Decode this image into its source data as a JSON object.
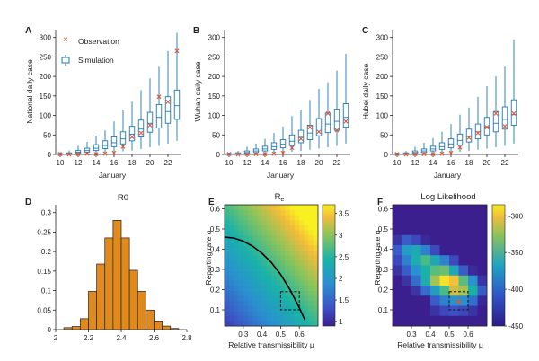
{
  "colors": {
    "box": "#1f78b4",
    "observation": "#e8552b",
    "histogram": "#e08a1e",
    "contour": "#000000"
  },
  "chart_data": [
    {
      "panel": "A",
      "type": "box",
      "ylabel": "National daily case",
      "xlabel": "January",
      "x": [
        10,
        11,
        12,
        13,
        14,
        15,
        16,
        17,
        18,
        19,
        20,
        21,
        22,
        23
      ],
      "xticks": [
        10,
        12,
        14,
        16,
        18,
        20,
        22
      ],
      "yticks": [
        0,
        50,
        100,
        150,
        200,
        250,
        300
      ],
      "ylim": [
        0,
        320
      ],
      "legend": {
        "observation": "Observation",
        "simulation": "Simulation"
      },
      "observation": [
        1,
        0,
        1,
        2,
        1,
        2,
        4,
        20,
        45,
        55,
        75,
        148,
        135,
        265
      ],
      "simulation": [
        {
          "min": 0,
          "q1": 0,
          "median": 1,
          "q3": 2,
          "max": 6
        },
        {
          "min": 0,
          "q1": 1,
          "median": 2,
          "q3": 4,
          "max": 10
        },
        {
          "min": 0,
          "q1": 3,
          "median": 6,
          "q3": 10,
          "max": 22
        },
        {
          "min": 1,
          "q1": 6,
          "median": 10,
          "q3": 16,
          "max": 32
        },
        {
          "min": 2,
          "q1": 10,
          "median": 16,
          "q3": 25,
          "max": 48
        },
        {
          "min": 4,
          "q1": 15,
          "median": 23,
          "q3": 35,
          "max": 62
        },
        {
          "min": 6,
          "q1": 20,
          "median": 30,
          "q3": 45,
          "max": 85
        },
        {
          "min": 8,
          "q1": 27,
          "median": 40,
          "q3": 58,
          "max": 115
        },
        {
          "min": 10,
          "q1": 35,
          "median": 52,
          "q3": 72,
          "max": 135
        },
        {
          "min": 14,
          "q1": 45,
          "median": 65,
          "q3": 88,
          "max": 165
        },
        {
          "min": 18,
          "q1": 57,
          "median": 80,
          "q3": 108,
          "max": 195
        },
        {
          "min": 22,
          "q1": 68,
          "median": 95,
          "q3": 128,
          "max": 225
        },
        {
          "min": 28,
          "q1": 80,
          "median": 110,
          "q3": 148,
          "max": 265
        },
        {
          "min": 35,
          "q1": 90,
          "median": 125,
          "q3": 165,
          "max": 312
        }
      ]
    },
    {
      "panel": "B",
      "type": "box",
      "ylabel": "Wuhan daily case",
      "xlabel": "January",
      "x": [
        10,
        11,
        12,
        13,
        14,
        15,
        16,
        17,
        18,
        19,
        20,
        21,
        22,
        23
      ],
      "xticks": [
        10,
        12,
        14,
        16,
        18,
        20,
        22
      ],
      "yticks": [
        0,
        50,
        100,
        150,
        200,
        250,
        300
      ],
      "ylim": [
        0,
        320
      ],
      "observation": [
        1,
        0,
        1,
        1,
        1,
        2,
        4,
        17,
        40,
        70,
        58,
        105,
        62,
        85
      ],
      "simulation": [
        {
          "min": 0,
          "q1": 0,
          "median": 1,
          "q3": 2,
          "max": 5
        },
        {
          "min": 0,
          "q1": 1,
          "median": 2,
          "q3": 4,
          "max": 9
        },
        {
          "min": 0,
          "q1": 2,
          "median": 5,
          "q3": 9,
          "max": 20
        },
        {
          "min": 1,
          "q1": 5,
          "median": 9,
          "q3": 14,
          "max": 28
        },
        {
          "min": 2,
          "q1": 9,
          "median": 14,
          "q3": 21,
          "max": 40
        },
        {
          "min": 3,
          "q1": 13,
          "median": 20,
          "q3": 30,
          "max": 55
        },
        {
          "min": 5,
          "q1": 17,
          "median": 26,
          "q3": 38,
          "max": 72
        },
        {
          "min": 7,
          "q1": 23,
          "median": 34,
          "q3": 50,
          "max": 98
        },
        {
          "min": 9,
          "q1": 30,
          "median": 44,
          "q3": 62,
          "max": 115
        },
        {
          "min": 12,
          "q1": 38,
          "median": 55,
          "q3": 75,
          "max": 140
        },
        {
          "min": 15,
          "q1": 48,
          "median": 68,
          "q3": 92,
          "max": 168
        },
        {
          "min": 18,
          "q1": 56,
          "median": 78,
          "q3": 106,
          "max": 185
        },
        {
          "min": 22,
          "q1": 62,
          "median": 85,
          "q3": 116,
          "max": 215
        },
        {
          "min": 28,
          "q1": 70,
          "median": 95,
          "q3": 130,
          "max": 258
        }
      ]
    },
    {
      "panel": "C",
      "type": "box",
      "ylabel": "Hubei daily case",
      "xlabel": "January",
      "x": [
        10,
        11,
        12,
        13,
        14,
        15,
        16,
        17,
        18,
        19,
        20,
        21,
        22,
        23
      ],
      "xticks": [
        10,
        12,
        14,
        16,
        18,
        20,
        22
      ],
      "yticks": [
        0,
        50,
        100,
        150,
        200,
        250,
        300
      ],
      "ylim": [
        0,
        320
      ],
      "observation": [
        1,
        0,
        1,
        1,
        1,
        2,
        4,
        18,
        43,
        55,
        70,
        105,
        72,
        105
      ],
      "simulation": [
        {
          "min": 0,
          "q1": 0,
          "median": 1,
          "q3": 2,
          "max": 5
        },
        {
          "min": 0,
          "q1": 1,
          "median": 2,
          "q3": 4,
          "max": 9
        },
        {
          "min": 0,
          "q1": 2,
          "median": 5,
          "q3": 9,
          "max": 20
        },
        {
          "min": 1,
          "q1": 5,
          "median": 9,
          "q3": 14,
          "max": 30
        },
        {
          "min": 2,
          "q1": 9,
          "median": 14,
          "q3": 21,
          "max": 42
        },
        {
          "min": 3,
          "q1": 13,
          "median": 20,
          "q3": 30,
          "max": 58
        },
        {
          "min": 5,
          "q1": 17,
          "median": 27,
          "q3": 40,
          "max": 78
        },
        {
          "min": 7,
          "q1": 24,
          "median": 36,
          "q3": 52,
          "max": 102
        },
        {
          "min": 9,
          "q1": 32,
          "median": 46,
          "q3": 65,
          "max": 120
        },
        {
          "min": 12,
          "q1": 40,
          "median": 58,
          "q3": 78,
          "max": 148
        },
        {
          "min": 15,
          "q1": 50,
          "median": 70,
          "q3": 95,
          "max": 175
        },
        {
          "min": 18,
          "q1": 58,
          "median": 80,
          "q3": 110,
          "max": 200
        },
        {
          "min": 22,
          "q1": 65,
          "median": 90,
          "q3": 122,
          "max": 225
        },
        {
          "min": 28,
          "q1": 75,
          "median": 102,
          "q3": 140,
          "max": 295
        }
      ]
    },
    {
      "panel": "D",
      "type": "bar",
      "title": "R0",
      "xticks": [
        2,
        2.2,
        2.4,
        2.6,
        2.8
      ],
      "yticks": [
        0,
        0.05,
        0.1,
        0.15,
        0.2,
        0.25,
        0.3
      ],
      "xlim": [
        2,
        2.8
      ],
      "ylim": [
        0,
        0.32
      ],
      "bin_width": 0.05,
      "bin_centers": [
        2.075,
        2.125,
        2.175,
        2.225,
        2.275,
        2.325,
        2.375,
        2.425,
        2.475,
        2.525,
        2.575,
        2.625,
        2.675,
        2.725
      ],
      "values": [
        0.005,
        0.008,
        0.028,
        0.098,
        0.168,
        0.235,
        0.28,
        0.235,
        0.152,
        0.098,
        0.05,
        0.02,
        0.009,
        0.003
      ]
    },
    {
      "panel": "E",
      "type": "heatmap",
      "title": "R",
      "title_subscript": "e",
      "xlabel": "Relative transmissibility μ",
      "ylabel": "Reporting rate α",
      "xticks": [
        0.3,
        0.4,
        0.5,
        0.6
      ],
      "yticks": [
        0.1,
        0.2,
        0.3,
        0.4,
        0.5,
        0.6
      ],
      "xlim": [
        0.2,
        0.7
      ],
      "ylim": [
        0.02,
        0.62
      ],
      "colorbar_ticks": [
        1,
        1.5,
        2,
        2.5,
        3,
        3.5
      ],
      "colorbar_range": [
        0.9,
        3.7
      ],
      "grid_x_range": [
        0.2,
        0.7
      ],
      "grid_y_range": [
        0.02,
        0.62
      ],
      "nx": 20,
      "ny": 24,
      "surface": "Re increases with alpha and mu: low (about 0.9) at alpha 0.02, mu 0.2; high (about 3.6) at alpha 0.62, mu 0.7",
      "contour_Re": 2.0,
      "contour_points": [
        [
          0.2,
          0.46
        ],
        [
          0.25,
          0.455
        ],
        [
          0.3,
          0.44
        ],
        [
          0.35,
          0.415
        ],
        [
          0.4,
          0.38
        ],
        [
          0.45,
          0.335
        ],
        [
          0.5,
          0.275
        ],
        [
          0.55,
          0.2
        ],
        [
          0.6,
          0.11
        ],
        [
          0.63,
          0.05
        ]
      ],
      "dashed_box": {
        "x": [
          0.5,
          0.6
        ],
        "y": [
          0.1,
          0.19
        ]
      }
    },
    {
      "panel": "F",
      "type": "heatmap",
      "title": "Log Likelihood",
      "xlabel": "Relative transmissibility μ",
      "ylabel": "Reporting rate α",
      "xticks": [
        0.3,
        0.4,
        0.5,
        0.6
      ],
      "yticks": [
        0.1,
        0.2,
        0.3,
        0.4,
        0.5,
        0.6
      ],
      "xlim": [
        0.2,
        0.7
      ],
      "ylim": [
        0.02,
        0.62
      ],
      "colorbar_ticks": [
        -300,
        -350,
        -400,
        -450
      ],
      "colorbar_range": [
        -450,
        -285
      ],
      "grid_x_range": [
        0.2,
        0.7
      ],
      "grid_y_range": [
        0.02,
        0.62
      ],
      "nx": 10,
      "ny": 12,
      "cells": [
        [
          -450,
          -450,
          -450,
          -450,
          -450,
          -450,
          -450,
          -450,
          -450,
          -450
        ],
        [
          -450,
          -450,
          -450,
          -450,
          -440,
          -430,
          -425,
          -430,
          -440,
          -450
        ],
        [
          -450,
          -450,
          -450,
          -450,
          -420,
          -400,
          -390,
          -392,
          -410,
          -445
        ],
        [
          -450,
          -450,
          -440,
          -410,
          -380,
          -345,
          -310,
          -320,
          -360,
          -420
        ],
        [
          -450,
          -440,
          -410,
          -365,
          -320,
          -290,
          -300,
          -340,
          -390,
          -440
        ],
        [
          -440,
          -420,
          -390,
          -360,
          -340,
          -335,
          -370,
          -420,
          -445,
          -450
        ],
        [
          -430,
          -400,
          -365,
          -345,
          -370,
          -400,
          -430,
          -450,
          -450,
          -450
        ],
        [
          -420,
          -380,
          -370,
          -400,
          -430,
          -450,
          -450,
          -450,
          -450,
          -450
        ],
        [
          -440,
          -420,
          -430,
          -445,
          -450,
          -450,
          -450,
          -450,
          -450,
          -450
        ],
        [
          -450,
          -450,
          -450,
          -450,
          -450,
          -450,
          -450,
          -450,
          -450,
          -450
        ],
        [
          -450,
          -450,
          -450,
          -450,
          -450,
          -450,
          -450,
          -450,
          -450,
          -450
        ],
        [
          -450,
          -450,
          -450,
          -450,
          -450,
          -450,
          -450,
          -450,
          -450,
          -450
        ]
      ],
      "dashed_box": {
        "x": [
          0.5,
          0.6
        ],
        "y": [
          0.1,
          0.19
        ]
      },
      "mle_marker": {
        "mu": 0.55,
        "alpha": 0.14
      }
    }
  ]
}
